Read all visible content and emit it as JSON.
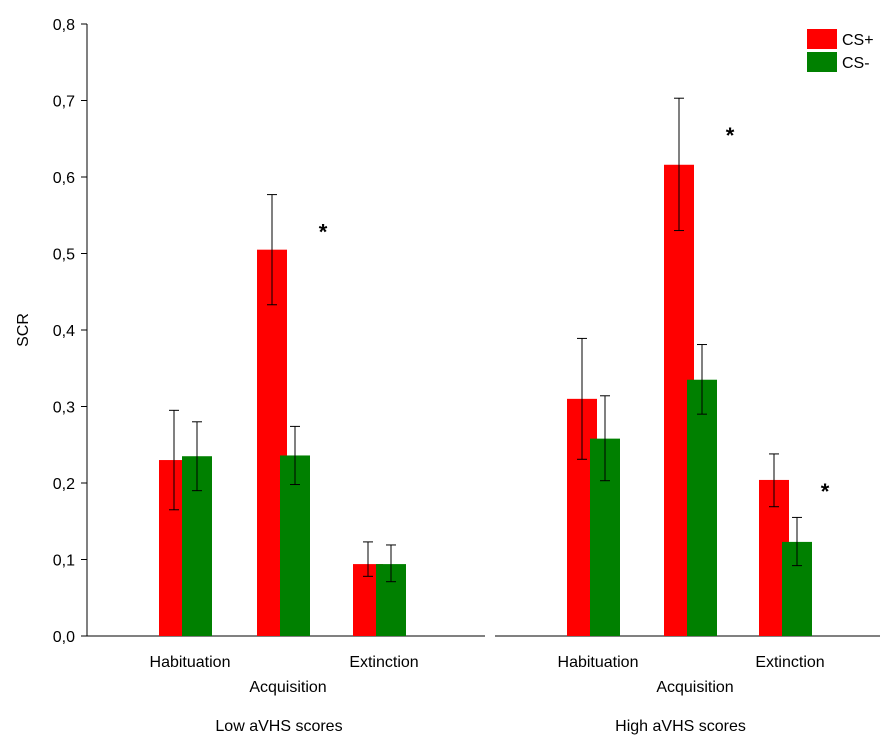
{
  "chart_data": {
    "type": "bar",
    "ylabel": "SCR",
    "ylim": [
      0,
      0.8
    ],
    "yticks": [
      "0,0",
      "0,1",
      "0,2",
      "0,3",
      "0,4",
      "0,5",
      "0,6",
      "0,7",
      "0,8"
    ],
    "legend": {
      "placement": "top-right",
      "entries": [
        {
          "name": "CS+",
          "color": "#ff0000"
        },
        {
          "name": "CS-",
          "color": "#008000"
        }
      ]
    },
    "panels": [
      {
        "title": "Low aVHS scores",
        "categories": [
          "Habituation",
          "Acquisition",
          "Extinction"
        ],
        "series": [
          {
            "name": "CS+",
            "values": [
              0.23,
              0.505,
              0.094
            ],
            "err_low": [
              0.165,
              0.433,
              0.078
            ],
            "err_high": [
              0.295,
              0.577,
              0.123
            ]
          },
          {
            "name": "CS-",
            "values": [
              0.235,
              0.236,
              0.094
            ],
            "err_low": [
              0.19,
              0.198,
              0.071
            ],
            "err_high": [
              0.28,
              0.274,
              0.119
            ]
          }
        ],
        "annotations": [
          "",
          "*",
          ""
        ]
      },
      {
        "title": "High aVHS scores",
        "categories": [
          "Habituation",
          "Acquisition",
          "Extinction"
        ],
        "series": [
          {
            "name": "CS+",
            "values": [
              0.31,
              0.616,
              0.204
            ],
            "err_low": [
              0.231,
              0.53,
              0.169
            ],
            "err_high": [
              0.389,
              0.703,
              0.238
            ]
          },
          {
            "name": "CS-",
            "values": [
              0.258,
              0.335,
              0.123
            ],
            "err_low": [
              0.203,
              0.29,
              0.092
            ],
            "err_high": [
              0.314,
              0.381,
              0.155
            ]
          }
        ],
        "annotations": [
          "",
          "*",
          "*"
        ]
      }
    ]
  }
}
